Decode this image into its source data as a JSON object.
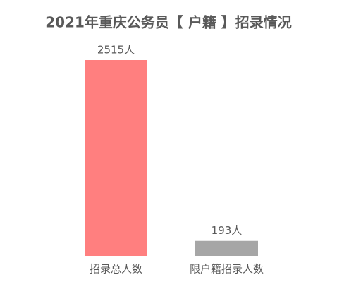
{
  "chart_data": {
    "type": "bar",
    "title": "2021年重庆公务员【 户籍 】招录情况",
    "categories": [
      "招录总人数",
      "限户籍招录人数"
    ],
    "values": [
      2515,
      193
    ],
    "value_labels": [
      "2515人",
      "193人"
    ],
    "colors": [
      "#ff7f7f",
      "#a6a6a6"
    ]
  }
}
